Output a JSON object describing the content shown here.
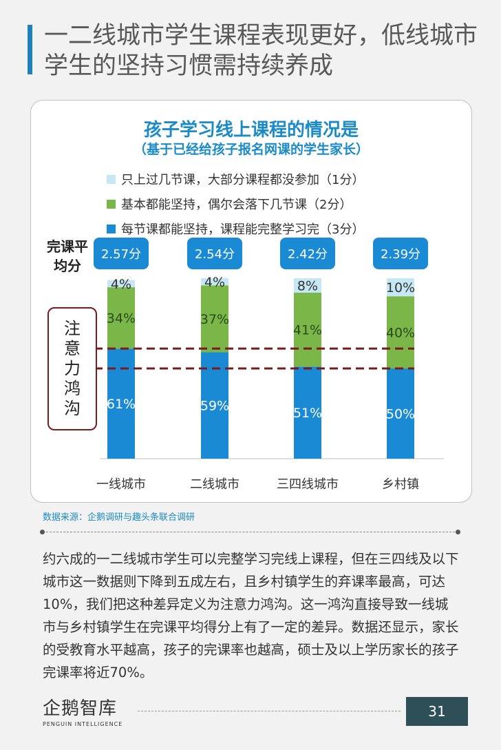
{
  "headline": "一二线城市学生课程表现更好，低线城市学生的坚持习惯需持续养成",
  "chart_data": {
    "type": "bar",
    "stacked": true,
    "title": "孩子学习线上课程的情况是",
    "subtitle": "（基于已经给孩子报名网课的学生家长）",
    "categories": [
      "一线城市",
      "二线城市",
      "三四线城市",
      "乡村镇"
    ],
    "series": [
      {
        "name": "每节课都能坚持，课程能完整学习完（3分）",
        "color": "#1a8ad4",
        "values": [
          61,
          59,
          51,
          50
        ]
      },
      {
        "name": "基本都能坚持，偶尔会落下几节课（2分）",
        "color": "#7ab648",
        "values": [
          34,
          37,
          41,
          40
        ]
      },
      {
        "name": "只上过几节课，大部分课程都没参加（1分）",
        "color": "#c6e8f4",
        "values": [
          4,
          4,
          8,
          10
        ]
      }
    ],
    "legend_order": [
      2,
      1,
      0
    ],
    "value_suffix": "%",
    "avg_label": "完课平均分",
    "averages": [
      "2.57分",
      "2.54分",
      "2.42分",
      "2.39分"
    ],
    "annotation": "注意力鸿沟",
    "legend_position": "top",
    "grid": false
  },
  "source": "数据来源：企鹅调研与趣头条联合调研",
  "body_text": "约六成的一二线城市学生可以完整学习完线上课程，但在三四线及以下城市这一数据则下降到五成左右，且乡村镇学生的弃课率最高，可达10%，我们把这种差异定义为注意力鸿沟。这一鸿沟直接导致一线城市与乡村镇学生在完课平均得分上有了一定的差异。数据还显示，家长的受教育水平越高，孩子的完课率也越高，硕士及以上学历家长的孩子完课率将近70%。",
  "logo": {
    "cn": "企鹅智库",
    "en": "PENGUIN INTELLIGENCE"
  },
  "page_number": "31"
}
